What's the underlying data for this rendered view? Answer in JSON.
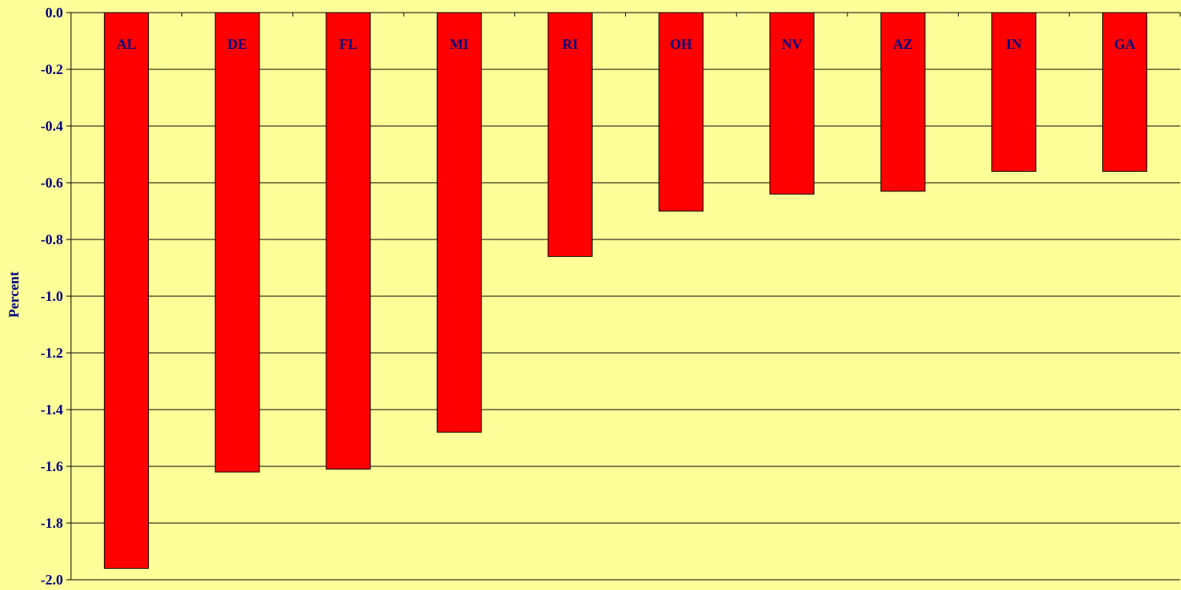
{
  "colors": {
    "background": "#ffff99",
    "bar": "#ff0000",
    "text": "#000080",
    "grid": "#000000"
  },
  "chart_data": {
    "type": "bar",
    "categories": [
      "AL",
      "DE",
      "FL",
      "MI",
      "RI",
      "OH",
      "NV",
      "AZ",
      "IN",
      "GA"
    ],
    "values": [
      -1.96,
      -1.62,
      -1.61,
      -1.48,
      -0.86,
      -0.7,
      -0.64,
      -0.63,
      -0.56,
      -0.56
    ],
    "title": "",
    "xlabel": "",
    "ylabel": "Percent",
    "ylim": [
      -2.0,
      0.0
    ],
    "yticks": [
      "0.0",
      "-0.2",
      "-0.4",
      "-0.6",
      "-0.8",
      "-1.0",
      "-1.2",
      "-1.4",
      "-1.6",
      "-1.8",
      "-2.0"
    ],
    "grid": true,
    "category_labels_position": "inside top of bars"
  }
}
